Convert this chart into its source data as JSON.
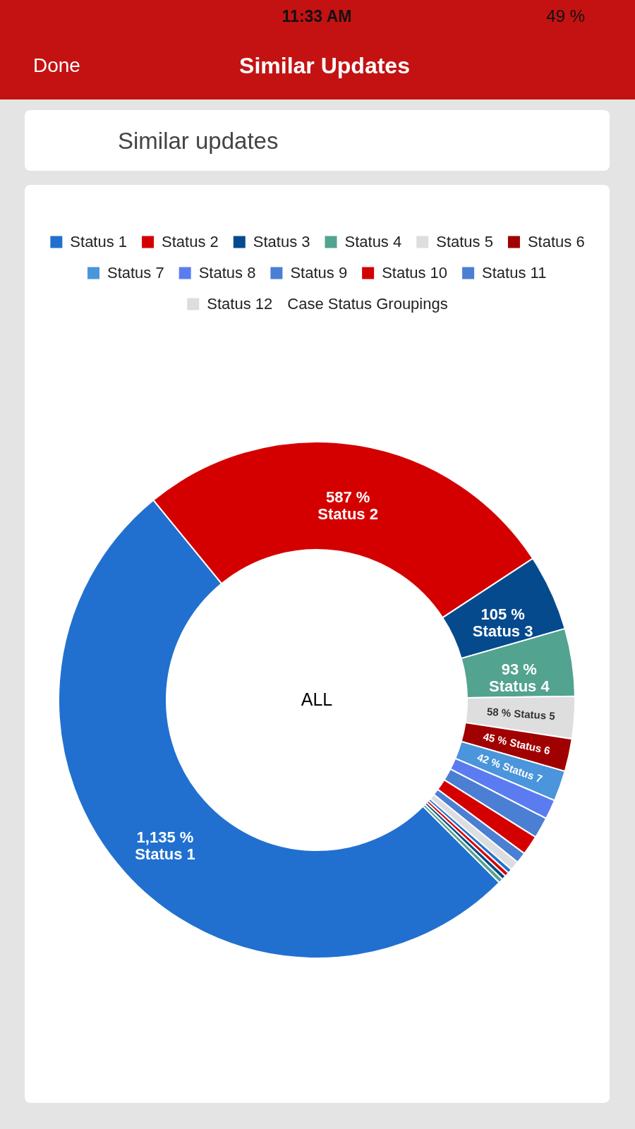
{
  "chart_data": {
    "type": "donut",
    "title": "Similar Updates",
    "subtitle": "Similar updates",
    "legend_title": "Case Status Groupings",
    "legend": "top",
    "categories": [
      "Status 1",
      "Status 2",
      "Status 3",
      "Status 4",
      "Status 5",
      "Status 6",
      "Status 7",
      "Status 8",
      "Status 9",
      "Status 10",
      "Status 11",
      "Status 12",
      null,
      null,
      null,
      null
    ],
    "values": [
      1135,
      587,
      105,
      93,
      58,
      45,
      42,
      27,
      29,
      27,
      15,
      13,
      6,
      6,
      6,
      6
    ],
    "colors": [
      "#2170d0",
      "#d40000",
      "#064a8e",
      "#52a38f",
      "#dedede",
      "#a00000",
      "#4a95db",
      "#5b7cf0",
      "#4a7fd4",
      "#d40000",
      "#4a7fd4",
      "#dcdde0",
      "#2170d0",
      "#d40000",
      "#064a8e",
      "#52a38f"
    ],
    "value_labels": [
      "1,135 %",
      "587 %",
      "105 %",
      "93 %",
      "58 %",
      "45 %",
      "42 %",
      null,
      null,
      null,
      null,
      null,
      null,
      null,
      null,
      null
    ],
    "annotations": [
      "11:33 AM",
      "49 %",
      "Done",
      "ALL"
    ]
  }
}
